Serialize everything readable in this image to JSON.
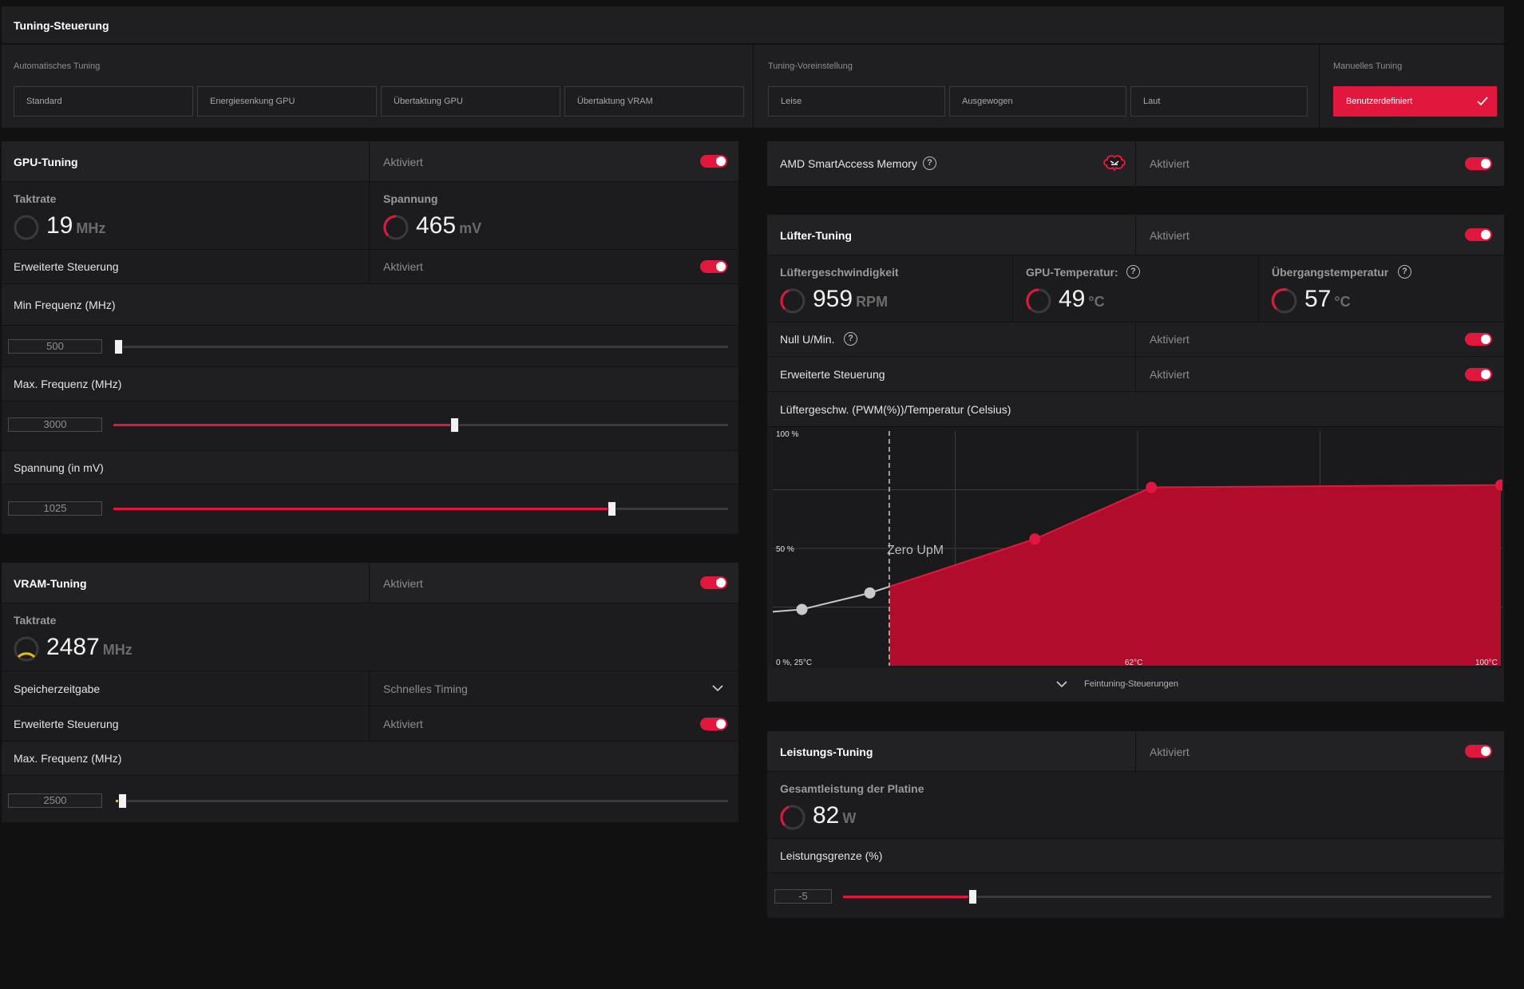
{
  "colors": {
    "accent": "#e2173d",
    "gauge_yellow": "#e8b820",
    "background": "#111112",
    "panel": "#1c1c1e"
  },
  "tuning_control": {
    "title": "Tuning-Steuerung",
    "auto_label": "Automatisches Tuning",
    "auto_buttons": [
      "Standard",
      "Energiesenkung GPU",
      "Übertaktung GPU",
      "Übertaktung VRAM"
    ],
    "preset_label": "Tuning-Voreinstellung",
    "preset_buttons": [
      "Leise",
      "Ausgewogen",
      "Laut"
    ],
    "manual_label": "Manuelles Tuning",
    "manual_button": "Benutzerdefiniert"
  },
  "gpu": {
    "title": "GPU-Tuning",
    "status": "Aktiviert",
    "clock_label": "Taktrate",
    "clock_value": "19",
    "clock_unit": "MHz",
    "voltage_label": "Spannung",
    "voltage_value": "465",
    "voltage_unit": "mV",
    "advanced_label": "Erweiterte Steuerung",
    "advanced_status": "Aktiviert",
    "min_freq_label": "Min Frequenz (MHz)",
    "min_freq_value": "500",
    "max_freq_label": "Max. Frequenz (MHz)",
    "max_freq_value": "3000",
    "voltage_mv_label": "Spannung (in mV)",
    "voltage_mv_value": "1025"
  },
  "vram": {
    "title": "VRAM-Tuning",
    "status": "Aktiviert",
    "clock_label": "Taktrate",
    "clock_value": "2487",
    "clock_unit": "MHz",
    "timing_label": "Speicherzeitgabe",
    "timing_value": "Schnelles Timing",
    "advanced_label": "Erweiterte Steuerung",
    "advanced_status": "Aktiviert",
    "max_freq_label": "Max. Frequenz (MHz)",
    "max_freq_value": "2500"
  },
  "sam": {
    "title": "AMD SmartAccess Memory",
    "status": "Aktiviert"
  },
  "fan": {
    "title": "Lüfter-Tuning",
    "status": "Aktiviert",
    "speed_label": "Lüftergeschwindigkeit",
    "speed_value": "959",
    "speed_unit": "RPM",
    "gpu_temp_label": "GPU-Temperatur:",
    "gpu_temp_value": "49",
    "gpu_temp_unit": "°C",
    "junction_label": "Übergangstemperatur",
    "junction_value": "57",
    "junction_unit": "°C",
    "zero_rpm_label": "Null U/Min.",
    "zero_rpm_status": "Aktiviert",
    "advanced_label": "Erweiterte Steuerung",
    "advanced_status": "Aktiviert",
    "curve_label": "Lüftergeschw. (PWM(%))/Temperatur (Celsius)",
    "fine_tuning_label": "Feintuning-Steuerungen"
  },
  "power": {
    "title": "Leistungs-Tuning",
    "status": "Aktiviert",
    "board_label": "Gesamtleistung der Platine",
    "board_value": "82",
    "board_unit": "W",
    "limit_label": "Leistungsgrenze (%)",
    "limit_value": "-5"
  },
  "sliders": {
    "gpu_min_freq": 0.0,
    "gpu_max_freq": 0.555,
    "gpu_voltage": 0.81,
    "vram_max_freq": 0.01,
    "power_limit": 0.2
  },
  "chart_data": {
    "type": "area",
    "ylabel_top": "100 %",
    "ylabel_mid": "50 %",
    "origin_label": "0 %, 25°C",
    "x_tick_mid": "62°C",
    "x_tick_max": "100°C",
    "annotation": "Zero UpM",
    "xlim": [
      25,
      100
    ],
    "ylim": [
      0,
      100
    ],
    "zero_rpm_threshold": 37,
    "points": [
      {
        "x": 25,
        "y": 23
      },
      {
        "x": 28,
        "y": 24
      },
      {
        "x": 35,
        "y": 31
      },
      {
        "x": 52,
        "y": 54
      },
      {
        "x": 64,
        "y": 76
      },
      {
        "x": 100,
        "y": 77
      }
    ]
  }
}
